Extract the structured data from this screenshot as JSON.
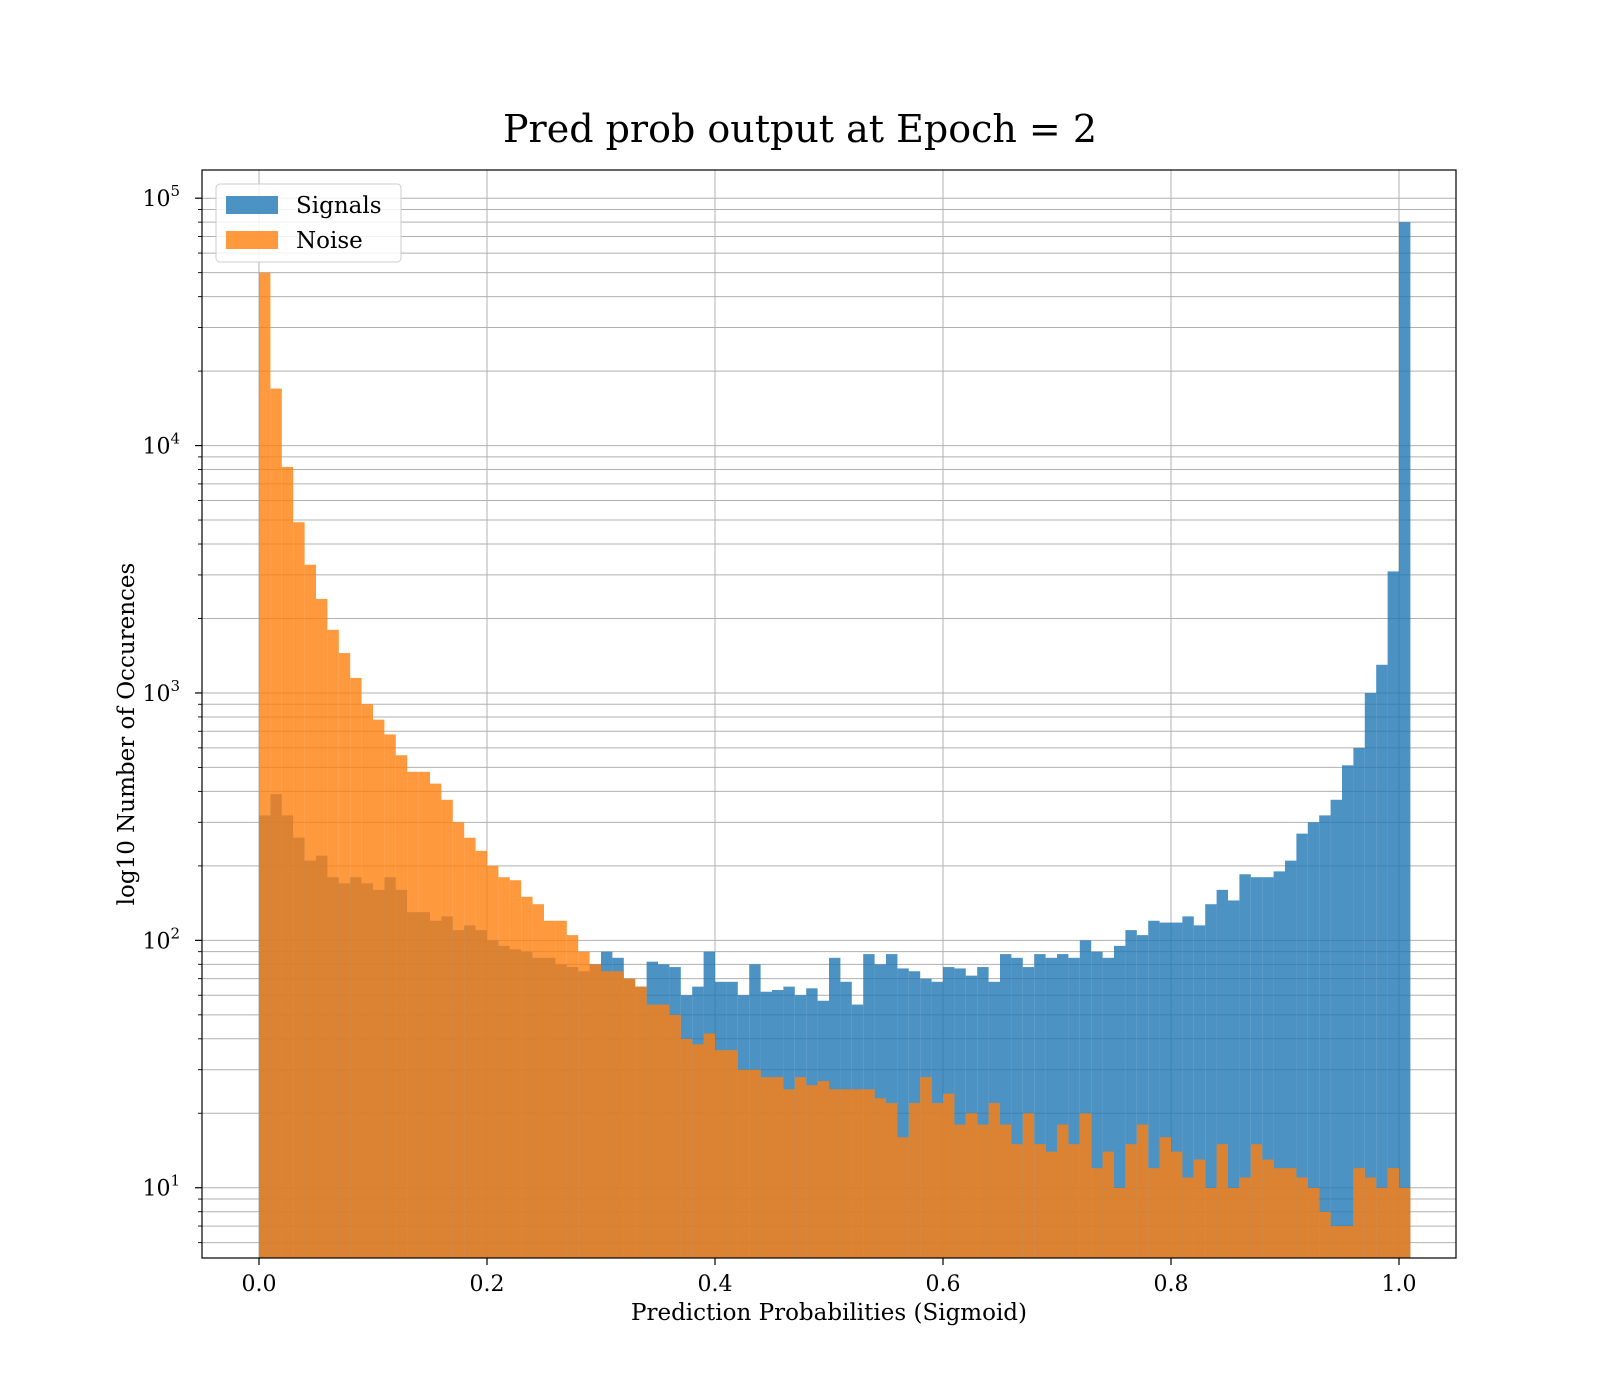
{
  "chart_data": {
    "type": "bar",
    "title": "Pred prob output at Epoch = 2",
    "xlabel": "Prediction Probabilities (Sigmoid)",
    "ylabel": "log10 Number of Occurences",
    "xlim": [
      -0.05,
      1.05
    ],
    "ylim": [
      5.2,
      130000
    ],
    "yscale": "log",
    "grid": true,
    "legend_placement": "top-left",
    "bin_width": 0.01,
    "x_start": 0.0,
    "xticks": [
      "0.0",
      "0.2",
      "0.4",
      "0.6",
      "0.8",
      "1.0"
    ],
    "yticks": [
      {
        "base": "10",
        "exp": "1"
      },
      {
        "base": "10",
        "exp": "2"
      },
      {
        "base": "10",
        "exp": "3"
      },
      {
        "base": "10",
        "exp": "4"
      },
      {
        "base": "10",
        "exp": "5"
      }
    ],
    "series": [
      {
        "name": "Signals",
        "color": "#1f77b4",
        "alpha": 0.8,
        "values": [
          320,
          390,
          320,
          260,
          210,
          220,
          180,
          170,
          180,
          170,
          160,
          180,
          160,
          130,
          130,
          120,
          125,
          110,
          115,
          110,
          100,
          95,
          92,
          90,
          85,
          85,
          80,
          78,
          75,
          80,
          90,
          85,
          70,
          65,
          82,
          80,
          78,
          60,
          65,
          90,
          68,
          68,
          60,
          80,
          62,
          63,
          65,
          60,
          64,
          57,
          85,
          68,
          55,
          88,
          80,
          88,
          77,
          75,
          70,
          68,
          78,
          77,
          72,
          78,
          68,
          88,
          85,
          78,
          88,
          85,
          88,
          85,
          100,
          90,
          85,
          95,
          110,
          105,
          120,
          118,
          118,
          125,
          115,
          140,
          160,
          145,
          185,
          180,
          180,
          190,
          210,
          270,
          300,
          320,
          370,
          510,
          600,
          1000,
          1300,
          3100,
          80000
        ]
      },
      {
        "name": "Noise",
        "color": "#ff7f0e",
        "alpha": 0.8,
        "values": [
          50000,
          17000,
          8200,
          4900,
          3300,
          2400,
          1800,
          1450,
          1150,
          900,
          780,
          680,
          560,
          480,
          480,
          430,
          370,
          300,
          260,
          230,
          200,
          180,
          175,
          150,
          140,
          120,
          120,
          105,
          90,
          80,
          75,
          75,
          70,
          65,
          55,
          55,
          50,
          40,
          38,
          42,
          36,
          36,
          30,
          30,
          28,
          28,
          25,
          28,
          26,
          27,
          25,
          25,
          25,
          25,
          23,
          22,
          16,
          22,
          28,
          22,
          24,
          18,
          20,
          18,
          22,
          18,
          15,
          20,
          15,
          14,
          18,
          15,
          20,
          12,
          14,
          10,
          15,
          18,
          12,
          16,
          14,
          11,
          13,
          10,
          15,
          10,
          11,
          15,
          13,
          12,
          12,
          11,
          10,
          8,
          7,
          7,
          12,
          11,
          10,
          12,
          10
        ]
      }
    ]
  }
}
